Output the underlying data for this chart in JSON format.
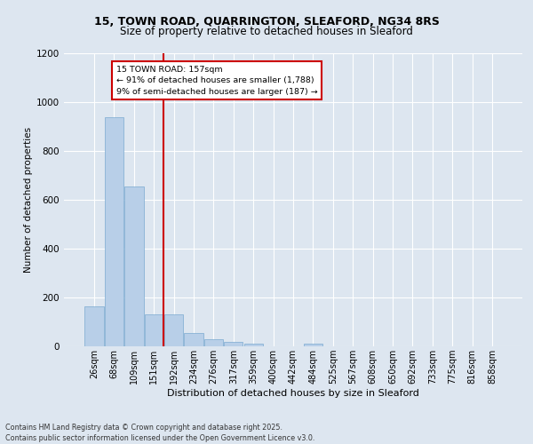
{
  "title_line1": "15, TOWN ROAD, QUARRINGTON, SLEAFORD, NG34 8RS",
  "title_line2": "Size of property relative to detached houses in Sleaford",
  "xlabel": "Distribution of detached houses by size in Sleaford",
  "ylabel": "Number of detached properties",
  "footnote": "Contains HM Land Registry data © Crown copyright and database right 2025.\nContains public sector information licensed under the Open Government Licence v3.0.",
  "annotation_title": "15 TOWN ROAD: 157sqm",
  "annotation_line2": "← 91% of detached houses are smaller (1,788)",
  "annotation_line3": "9% of semi-detached houses are larger (187) →",
  "bar_categories": [
    "26sqm",
    "68sqm",
    "109sqm",
    "151sqm",
    "192sqm",
    "234sqm",
    "276sqm",
    "317sqm",
    "359sqm",
    "400sqm",
    "442sqm",
    "484sqm",
    "525sqm",
    "567sqm",
    "608sqm",
    "650sqm",
    "692sqm",
    "733sqm",
    "775sqm",
    "816sqm",
    "858sqm"
  ],
  "bar_values": [
    165,
    940,
    655,
    130,
    130,
    55,
    30,
    18,
    10,
    0,
    0,
    12,
    0,
    0,
    0,
    0,
    0,
    0,
    0,
    0,
    0
  ],
  "bar_color": "#b8cfe8",
  "bar_edge_color": "#7aaad0",
  "vline_x": 3.5,
  "vline_color": "#cc0000",
  "ylim": [
    0,
    1200
  ],
  "yticks": [
    0,
    200,
    400,
    600,
    800,
    1000,
    1200
  ],
  "background_color": "#dde6f0",
  "grid_color": "#ffffff",
  "annotation_box_edge": "#cc0000",
  "annotation_box_face": "#ffffff",
  "title_fontsize": 9,
  "subtitle_fontsize": 8.5,
  "xlabel_fontsize": 8,
  "ylabel_fontsize": 7.5,
  "tick_fontsize": 7,
  "footnote_fontsize": 5.8
}
